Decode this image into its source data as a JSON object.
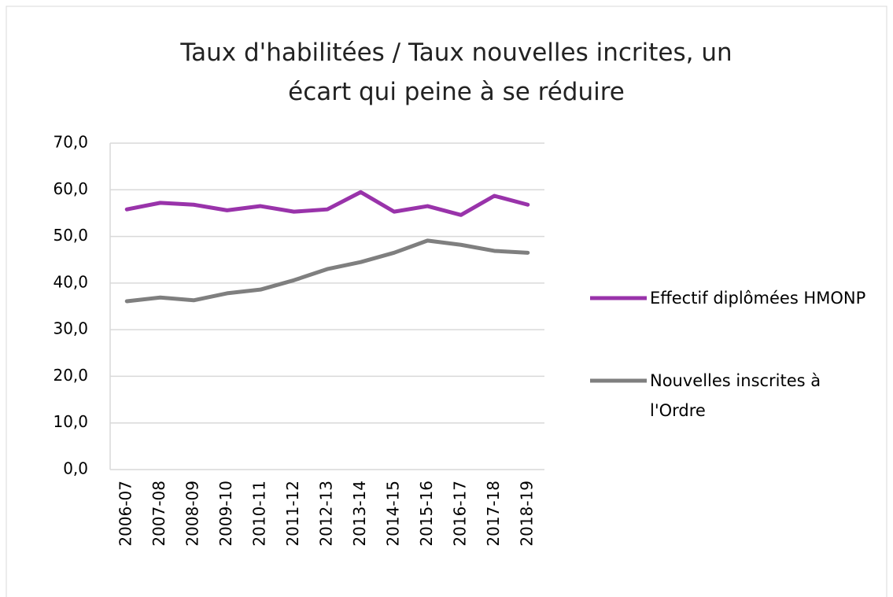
{
  "chart_data": {
    "type": "line",
    "title": "Taux d'habilitées / Taux nouvelles incrites, un écart qui peine à se réduire",
    "categories": [
      "2006-07",
      "2007-08",
      "2008-09",
      "2009-10",
      "2010-11",
      "2011-12",
      "2012-13",
      "2013-14",
      "2014-15",
      "2015-16",
      "2016-17",
      "2017-18",
      "2018-19"
    ],
    "series": [
      {
        "name": "Effectif diplômées HMONP",
        "color": "#9933aa",
        "values": [
          55.8,
          57.2,
          56.8,
          55.6,
          56.5,
          55.3,
          55.8,
          59.5,
          55.3,
          56.5,
          54.6,
          58.7,
          56.8
        ]
      },
      {
        "name": "Nouvelles inscrites à l'Ordre",
        "color": "#7f7f7f",
        "values": [
          36.1,
          36.9,
          36.3,
          37.8,
          38.6,
          40.6,
          43.0,
          44.5,
          46.5,
          49.1,
          48.2,
          46.9,
          46.5
        ]
      }
    ],
    "ylim": [
      0,
      70
    ],
    "yticks": [
      {
        "value": 0,
        "label": "0,0"
      },
      {
        "value": 10,
        "label": "10,0"
      },
      {
        "value": 20,
        "label": "20,0"
      },
      {
        "value": 30,
        "label": "30,0"
      },
      {
        "value": 40,
        "label": "40,0"
      },
      {
        "value": 50,
        "label": "50,0"
      },
      {
        "value": 60,
        "label": "60,0"
      },
      {
        "value": 70,
        "label": "70,0"
      }
    ],
    "grid": true,
    "legend": "right"
  }
}
